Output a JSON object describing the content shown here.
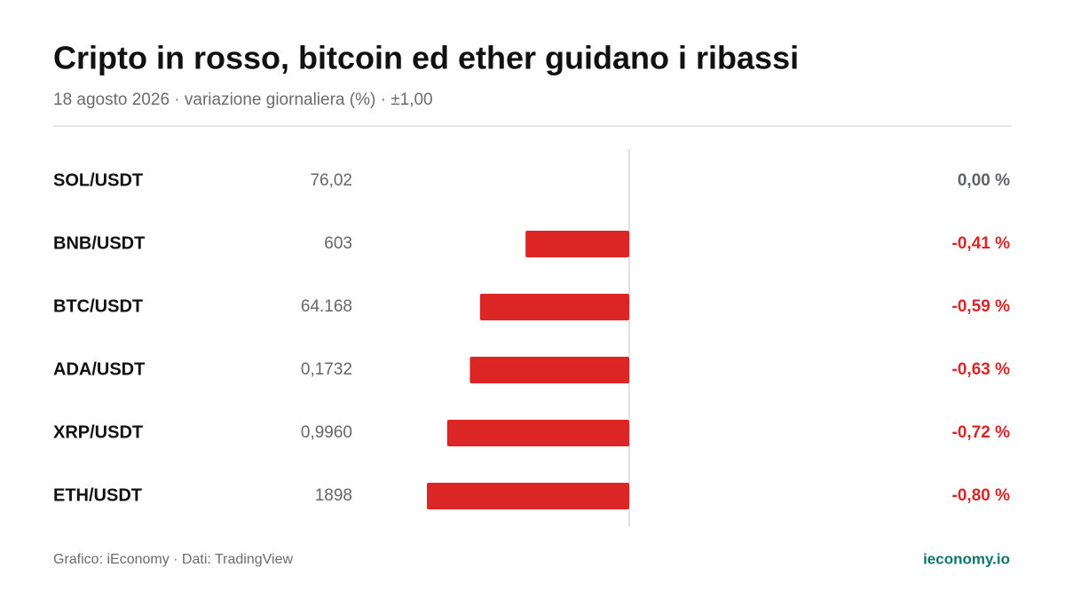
{
  "chart_data": {
    "type": "bar",
    "title": "Cripto in rosso, bitcoin ed ether guidano i ribassi",
    "subtitle": "18 agosto 2026 · variazione giornaliera (%) · ±1,00",
    "categories": [
      "SOL/USDT",
      "BNB/USDT",
      "BTC/USDT",
      "ADA/USDT",
      "XRP/USDT",
      "ETH/USDT"
    ],
    "prices": [
      "76,02",
      "603",
      "64.168",
      "0,1732",
      "0,9960",
      "1898"
    ],
    "values": [
      0,
      -0.41,
      -0.59,
      -0.63,
      -0.72,
      -0.8
    ],
    "value_labels": [
      "0,00 %",
      "-0,41 %",
      "-0,59 %",
      "-0,63 %",
      "-0,72 %",
      "-0,80 %"
    ],
    "xlim": [
      -1,
      1
    ],
    "color": "#dc2626",
    "neutral_color": "#5f6368",
    "source": "Grafico: iEconomy · Dati: TradingView",
    "brand": "ieconomy.io"
  }
}
